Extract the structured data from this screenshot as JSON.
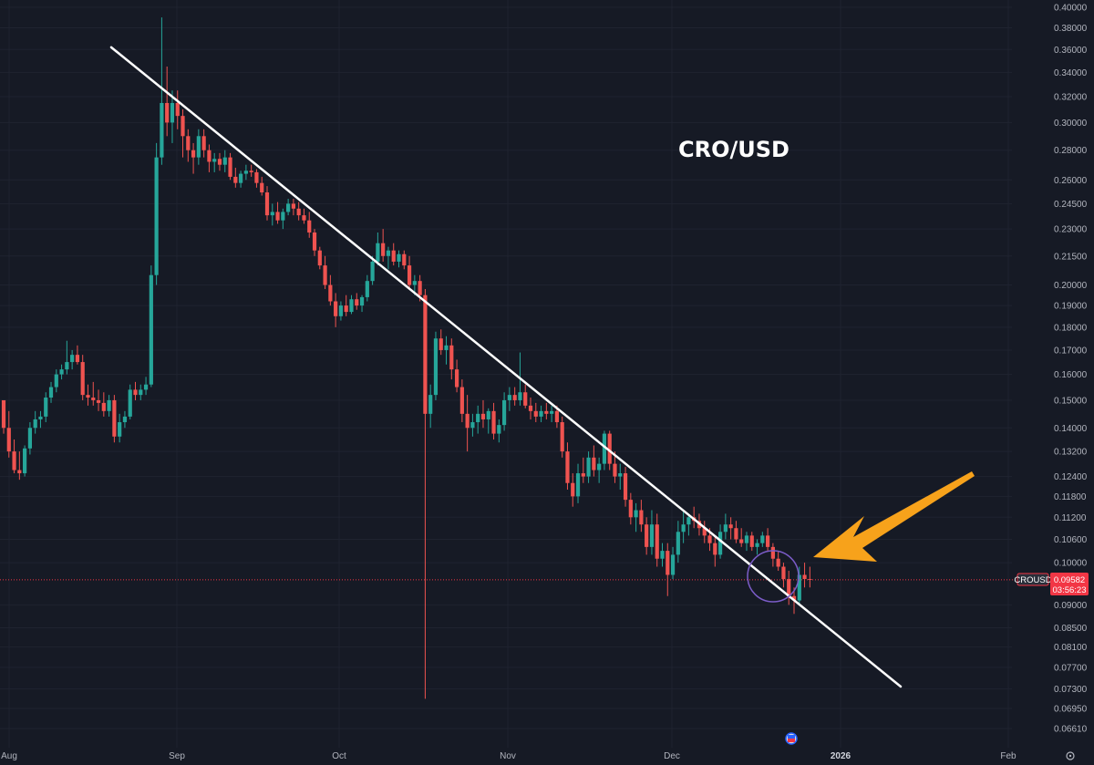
{
  "chart_data": {
    "type": "candlestick",
    "title": "CRO/USD",
    "symbol": "CROUSD",
    "last_price": "0.09582",
    "countdown": "03:56:23",
    "y_ticks": [
      "0.40000",
      "0.38000",
      "0.36000",
      "0.34000",
      "0.32000",
      "0.30000",
      "0.28000",
      "0.26000",
      "0.24500",
      "0.23000",
      "0.21500",
      "0.20000",
      "0.19000",
      "0.18000",
      "0.17000",
      "0.16000",
      "0.15000",
      "0.14000",
      "0.13200",
      "0.12400",
      "0.11800",
      "0.11200",
      "0.10600",
      "0.10000",
      "0.09000",
      "0.08500",
      "0.08100",
      "0.07700",
      "0.07300",
      "0.06950",
      "0.06610"
    ],
    "x_ticks": [
      {
        "label": "Aug",
        "bold": false
      },
      {
        "label": "Sep",
        "bold": false
      },
      {
        "label": "Oct",
        "bold": false
      },
      {
        "label": "Nov",
        "bold": false
      },
      {
        "label": "Dec",
        "bold": false
      },
      {
        "label": "2026",
        "bold": true
      },
      {
        "label": "Feb",
        "bold": false
      }
    ],
    "trendline": [
      [
        0.362,
        0.0742
      ],
      [
        0.0734,
        0.0732
      ]
    ],
    "candles": [
      [
        0.15,
        0.15,
        0.138,
        0.14
      ],
      [
        0.14,
        0.146,
        0.13,
        0.132
      ],
      [
        0.132,
        0.136,
        0.125,
        0.126
      ],
      [
        0.126,
        0.132,
        0.123,
        0.125
      ],
      [
        0.125,
        0.134,
        0.124,
        0.133
      ],
      [
        0.133,
        0.142,
        0.131,
        0.14
      ],
      [
        0.14,
        0.146,
        0.138,
        0.143
      ],
      [
        0.143,
        0.146,
        0.14,
        0.144
      ],
      [
        0.144,
        0.153,
        0.142,
        0.151
      ],
      [
        0.151,
        0.157,
        0.149,
        0.155
      ],
      [
        0.155,
        0.162,
        0.153,
        0.16
      ],
      [
        0.16,
        0.164,
        0.158,
        0.162
      ],
      [
        0.162,
        0.174,
        0.16,
        0.165
      ],
      [
        0.165,
        0.17,
        0.162,
        0.168
      ],
      [
        0.168,
        0.172,
        0.164,
        0.165
      ],
      [
        0.165,
        0.168,
        0.15,
        0.152
      ],
      [
        0.152,
        0.156,
        0.148,
        0.151
      ],
      [
        0.151,
        0.157,
        0.148,
        0.15
      ],
      [
        0.15,
        0.154,
        0.146,
        0.149
      ],
      [
        0.149,
        0.153,
        0.144,
        0.146
      ],
      [
        0.146,
        0.152,
        0.144,
        0.15
      ],
      [
        0.15,
        0.152,
        0.135,
        0.137
      ],
      [
        0.137,
        0.145,
        0.135,
        0.142
      ],
      [
        0.142,
        0.146,
        0.14,
        0.144
      ],
      [
        0.144,
        0.156,
        0.143,
        0.154
      ],
      [
        0.154,
        0.157,
        0.15,
        0.152
      ],
      [
        0.152,
        0.156,
        0.15,
        0.154
      ],
      [
        0.154,
        0.159,
        0.152,
        0.156
      ],
      [
        0.156,
        0.21,
        0.155,
        0.205
      ],
      [
        0.205,
        0.285,
        0.2,
        0.275
      ],
      [
        0.275,
        0.39,
        0.27,
        0.315
      ],
      [
        0.315,
        0.345,
        0.29,
        0.3
      ],
      [
        0.3,
        0.325,
        0.285,
        0.315
      ],
      [
        0.315,
        0.325,
        0.295,
        0.305
      ],
      [
        0.305,
        0.31,
        0.275,
        0.29
      ],
      [
        0.29,
        0.295,
        0.272,
        0.28
      ],
      [
        0.28,
        0.285,
        0.264,
        0.275
      ],
      [
        0.275,
        0.295,
        0.27,
        0.29
      ],
      [
        0.29,
        0.295,
        0.275,
        0.28
      ],
      [
        0.28,
        0.284,
        0.265,
        0.272
      ],
      [
        0.272,
        0.278,
        0.265,
        0.274
      ],
      [
        0.274,
        0.278,
        0.266,
        0.27
      ],
      [
        0.27,
        0.28,
        0.265,
        0.275
      ],
      [
        0.275,
        0.278,
        0.26,
        0.262
      ],
      [
        0.262,
        0.268,
        0.255,
        0.258
      ],
      [
        0.258,
        0.266,
        0.255,
        0.264
      ],
      [
        0.264,
        0.27,
        0.26,
        0.266
      ],
      [
        0.266,
        0.27,
        0.262,
        0.265
      ],
      [
        0.265,
        0.267,
        0.255,
        0.258
      ],
      [
        0.258,
        0.262,
        0.25,
        0.252
      ],
      [
        0.252,
        0.256,
        0.235,
        0.238
      ],
      [
        0.238,
        0.245,
        0.232,
        0.24
      ],
      [
        0.24,
        0.246,
        0.233,
        0.235
      ],
      [
        0.235,
        0.242,
        0.23,
        0.24
      ],
      [
        0.24,
        0.248,
        0.238,
        0.245
      ],
      [
        0.245,
        0.248,
        0.238,
        0.242
      ],
      [
        0.242,
        0.246,
        0.235,
        0.238
      ],
      [
        0.238,
        0.242,
        0.233,
        0.235
      ],
      [
        0.235,
        0.24,
        0.225,
        0.228
      ],
      [
        0.228,
        0.23,
        0.215,
        0.218
      ],
      [
        0.218,
        0.22,
        0.208,
        0.21
      ],
      [
        0.21,
        0.215,
        0.198,
        0.2
      ],
      [
        0.2,
        0.205,
        0.19,
        0.192
      ],
      [
        0.192,
        0.196,
        0.18,
        0.185
      ],
      [
        0.185,
        0.192,
        0.183,
        0.19
      ],
      [
        0.19,
        0.195,
        0.185,
        0.187
      ],
      [
        0.187,
        0.195,
        0.186,
        0.193
      ],
      [
        0.193,
        0.196,
        0.188,
        0.19
      ],
      [
        0.19,
        0.195,
        0.187,
        0.194
      ],
      [
        0.194,
        0.205,
        0.192,
        0.202
      ],
      [
        0.202,
        0.215,
        0.2,
        0.212
      ],
      [
        0.212,
        0.228,
        0.21,
        0.222
      ],
      [
        0.222,
        0.23,
        0.212,
        0.215
      ],
      [
        0.215,
        0.22,
        0.208,
        0.218
      ],
      [
        0.218,
        0.222,
        0.21,
        0.212
      ],
      [
        0.212,
        0.218,
        0.209,
        0.216
      ],
      [
        0.216,
        0.218,
        0.208,
        0.21
      ],
      [
        0.21,
        0.215,
        0.198,
        0.2
      ],
      [
        0.2,
        0.205,
        0.195,
        0.202
      ],
      [
        0.202,
        0.205,
        0.192,
        0.195
      ],
      [
        0.195,
        0.198,
        0.0712,
        0.145
      ],
      [
        0.145,
        0.156,
        0.14,
        0.152
      ],
      [
        0.152,
        0.178,
        0.15,
        0.175
      ],
      [
        0.175,
        0.179,
        0.168,
        0.17
      ],
      [
        0.17,
        0.176,
        0.164,
        0.172
      ],
      [
        0.172,
        0.175,
        0.158,
        0.162
      ],
      [
        0.162,
        0.166,
        0.153,
        0.155
      ],
      [
        0.155,
        0.158,
        0.142,
        0.145
      ],
      [
        0.145,
        0.152,
        0.132,
        0.14
      ],
      [
        0.14,
        0.145,
        0.137,
        0.142
      ],
      [
        0.142,
        0.148,
        0.138,
        0.145
      ],
      [
        0.145,
        0.15,
        0.14,
        0.143
      ],
      [
        0.143,
        0.147,
        0.138,
        0.146
      ],
      [
        0.146,
        0.149,
        0.136,
        0.138
      ],
      [
        0.138,
        0.143,
        0.135,
        0.141
      ],
      [
        0.141,
        0.153,
        0.139,
        0.15
      ],
      [
        0.15,
        0.155,
        0.146,
        0.152
      ],
      [
        0.152,
        0.155,
        0.148,
        0.15
      ],
      [
        0.15,
        0.169,
        0.148,
        0.153
      ],
      [
        0.153,
        0.156,
        0.147,
        0.148
      ],
      [
        0.148,
        0.151,
        0.143,
        0.146
      ],
      [
        0.146,
        0.149,
        0.142,
        0.144
      ],
      [
        0.144,
        0.148,
        0.142,
        0.146
      ],
      [
        0.146,
        0.149,
        0.143,
        0.145
      ],
      [
        0.145,
        0.148,
        0.142,
        0.146
      ],
      [
        0.146,
        0.148,
        0.14,
        0.142
      ],
      [
        0.142,
        0.144,
        0.13,
        0.132
      ],
      [
        0.132,
        0.135,
        0.12,
        0.122
      ],
      [
        0.122,
        0.125,
        0.115,
        0.118
      ],
      [
        0.118,
        0.128,
        0.116,
        0.125
      ],
      [
        0.125,
        0.13,
        0.122,
        0.124
      ],
      [
        0.124,
        0.132,
        0.122,
        0.13
      ],
      [
        0.13,
        0.134,
        0.124,
        0.126
      ],
      [
        0.126,
        0.13,
        0.122,
        0.128
      ],
      [
        0.128,
        0.139,
        0.126,
        0.138
      ],
      [
        0.138,
        0.139,
        0.126,
        0.128
      ],
      [
        0.128,
        0.132,
        0.122,
        0.124
      ],
      [
        0.124,
        0.128,
        0.12,
        0.125
      ],
      [
        0.125,
        0.127,
        0.115,
        0.117
      ],
      [
        0.117,
        0.119,
        0.11,
        0.112
      ],
      [
        0.112,
        0.116,
        0.108,
        0.114
      ],
      [
        0.114,
        0.117,
        0.108,
        0.11
      ],
      [
        0.11,
        0.112,
        0.102,
        0.104
      ],
      [
        0.104,
        0.114,
        0.102,
        0.11
      ],
      [
        0.11,
        0.113,
        0.099,
        0.101
      ],
      [
        0.101,
        0.105,
        0.099,
        0.103
      ],
      [
        0.103,
        0.105,
        0.092,
        0.097
      ],
      [
        0.097,
        0.104,
        0.096,
        0.102
      ],
      [
        0.102,
        0.111,
        0.1,
        0.108
      ],
      [
        0.108,
        0.114,
        0.105,
        0.11
      ],
      [
        0.11,
        0.113,
        0.107,
        0.112
      ],
      [
        0.112,
        0.115,
        0.109,
        0.111
      ],
      [
        0.111,
        0.113,
        0.107,
        0.109
      ],
      [
        0.109,
        0.111,
        0.105,
        0.107
      ],
      [
        0.107,
        0.109,
        0.103,
        0.105
      ],
      [
        0.105,
        0.107,
        0.099,
        0.102
      ],
      [
        0.102,
        0.11,
        0.101,
        0.108
      ],
      [
        0.108,
        0.113,
        0.106,
        0.11
      ],
      [
        0.11,
        0.112,
        0.106,
        0.109
      ],
      [
        0.109,
        0.111,
        0.105,
        0.106
      ],
      [
        0.106,
        0.109,
        0.104,
        0.105
      ],
      [
        0.105,
        0.108,
        0.103,
        0.107
      ],
      [
        0.107,
        0.108,
        0.103,
        0.104
      ],
      [
        0.104,
        0.106,
        0.102,
        0.105
      ],
      [
        0.105,
        0.108,
        0.104,
        0.107
      ],
      [
        0.107,
        0.109,
        0.103,
        0.104
      ],
      [
        0.104,
        0.105,
        0.099,
        0.101
      ],
      [
        0.101,
        0.103,
        0.098,
        0.099
      ],
      [
        0.099,
        0.1,
        0.094,
        0.096
      ],
      [
        0.096,
        0.098,
        0.09,
        0.092
      ],
      [
        0.092,
        0.094,
        0.088,
        0.091
      ],
      [
        0.091,
        0.099,
        0.09,
        0.097
      ],
      [
        0.097,
        0.1,
        0.094,
        0.096
      ],
      [
        0.096,
        0.099,
        0.094,
        0.0958
      ]
    ]
  }
}
